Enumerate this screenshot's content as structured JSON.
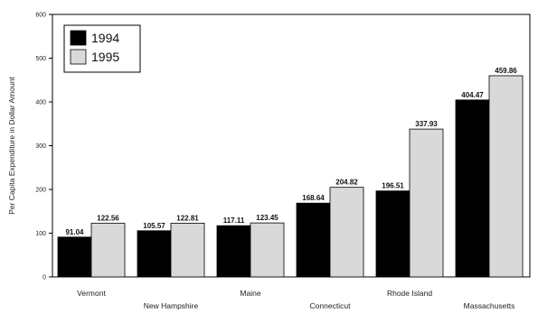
{
  "chart_data": {
    "type": "bar",
    "categories": [
      "Vermont",
      "New Hampshire",
      "Maine",
      "Connecticut",
      "Rhode Island",
      "Massachusetts"
    ],
    "series": [
      {
        "name": "1994",
        "values": [
          91.04,
          105.57,
          117.11,
          168.64,
          196.51,
          404.47
        ],
        "labels": [
          "91.04",
          "105.57",
          "117.11",
          "168.64",
          "196.51",
          "404.47"
        ]
      },
      {
        "name": "1995",
        "values": [
          122.56,
          122.81,
          123.45,
          204.82,
          337.93,
          459.86
        ],
        "labels": [
          "122.56",
          "122.81",
          "123.45",
          "204.82",
          "337.93",
          "459.86"
        ]
      }
    ],
    "ylabel": "Per Capita Expenditure in Dollar Amount",
    "ylim": [
      0,
      600
    ],
    "yticks": [
      "0",
      "100",
      "200",
      "300",
      "400",
      "500",
      "600"
    ],
    "legend_position": "top-left",
    "grid": false,
    "colors": {
      "1994": "#000000",
      "1995": "#d9d9d9"
    }
  }
}
